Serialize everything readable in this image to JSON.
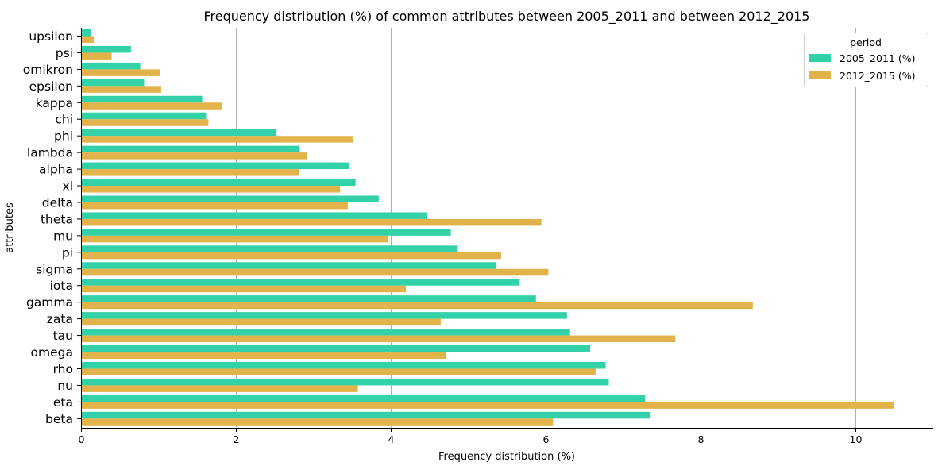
{
  "chart_data": {
    "type": "bar",
    "orientation": "horizontal",
    "title": "Frequency distribution (%) of common attributes between 2005_2011 and between 2012_2015",
    "xlabel": "Frequency distribution (%)",
    "ylabel": "attributes",
    "xlim": [
      0,
      11
    ],
    "xticks": [
      0,
      2,
      4,
      6,
      8,
      10
    ],
    "grid": "vertical",
    "legend": {
      "title": "period",
      "placement": "top-right"
    },
    "categories": [
      "upsilon",
      "psi",
      "omikron",
      "epsilon",
      "kappa",
      "chi",
      "phi",
      "lambda",
      "alpha",
      "xi",
      "delta",
      "theta",
      "mu",
      "pi",
      "sigma",
      "iota",
      "gamma",
      "zata",
      "tau",
      "omega",
      "rho",
      "nu",
      "eta",
      "beta"
    ],
    "series": [
      {
        "name": "2005_2011 (%)",
        "color": "#33d1a7",
        "values": [
          0.12,
          0.64,
          0.76,
          0.81,
          1.56,
          1.61,
          2.52,
          2.82,
          3.46,
          3.54,
          3.84,
          4.46,
          4.77,
          4.86,
          5.36,
          5.66,
          5.87,
          6.27,
          6.31,
          6.57,
          6.77,
          6.81,
          7.28,
          7.35
        ]
      },
      {
        "name": "2012_2015 (%)",
        "color": "#e3b34b",
        "values": [
          0.16,
          0.39,
          1.01,
          1.03,
          1.82,
          1.64,
          3.51,
          2.92,
          2.81,
          3.34,
          3.44,
          5.94,
          3.96,
          5.42,
          6.03,
          4.19,
          8.67,
          4.64,
          7.67,
          4.71,
          6.64,
          3.57,
          10.49,
          6.09
        ]
      }
    ]
  }
}
